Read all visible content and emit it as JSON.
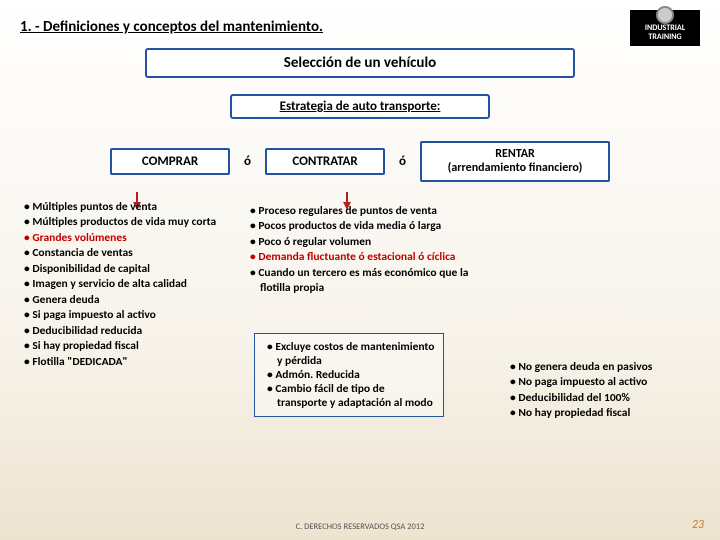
{
  "header": "1. - Definiciones y conceptos del mantenimiento.",
  "logo_text": "INDUSTRIAL TRAINING",
  "title": "Selección de un vehículo",
  "strategy": "Estrategia de auto transporte:",
  "or": "ó",
  "options": {
    "comprar": "COMPRAR",
    "contratar": "CONTRATAR",
    "rentar_line1": "RENTAR",
    "rentar_line2": "(arrendamiento financiero)"
  },
  "left_bullets": [
    {
      "t": "Múltiples puntos de venta",
      "red": false
    },
    {
      "t": "Múltiples productos de vida muy corta",
      "red": false
    },
    {
      "t": "Grandes volúmenes",
      "red": true
    },
    {
      "t": "Constancia de ventas",
      "red": false
    },
    {
      "t": "Disponibilidad de capital",
      "red": false
    },
    {
      "t": "Imagen y servicio de alta calidad",
      "red": false
    },
    {
      "t": "Genera deuda",
      "red": false
    },
    {
      "t": "Si paga impuesto al activo",
      "red": false
    },
    {
      "t": "Deducibilidad reducida",
      "red": false
    },
    {
      "t": "Si hay propiedad fiscal",
      "red": false
    },
    {
      "t": "Flotilla \"DEDICADA\"",
      "red": false
    }
  ],
  "mid_bullets": [
    {
      "t": "Proceso regulares de puntos de venta",
      "red": false
    },
    {
      "t": "Pocos productos de vida media ó larga",
      "red": false
    },
    {
      "t": "Poco ó regular volumen",
      "red": false
    },
    {
      "t": "Demanda fluctuante ó estacional ó cíclica",
      "red": true
    },
    {
      "t": "Cuando un tercero es más económico que la flotilla propia",
      "red": false
    }
  ],
  "mid_lower": [
    "Excluye costos de mantenimiento y pérdida",
    "Admón. Reducida",
    "Cambio fácil de tipo de transporte y adaptación al modo"
  ],
  "right_bullets": [
    "No genera deuda en pasivos",
    "No paga impuesto al activo",
    "Deducibilidad del 100%",
    "No hay propiedad fiscal"
  ],
  "footer": "C.  DERECHOS RESERVADOS QSA 2012",
  "page": "23",
  "colors": {
    "border": "#2352a0",
    "red": "#c00000",
    "arrow": "#B22222",
    "accent": "#c87b2e"
  }
}
